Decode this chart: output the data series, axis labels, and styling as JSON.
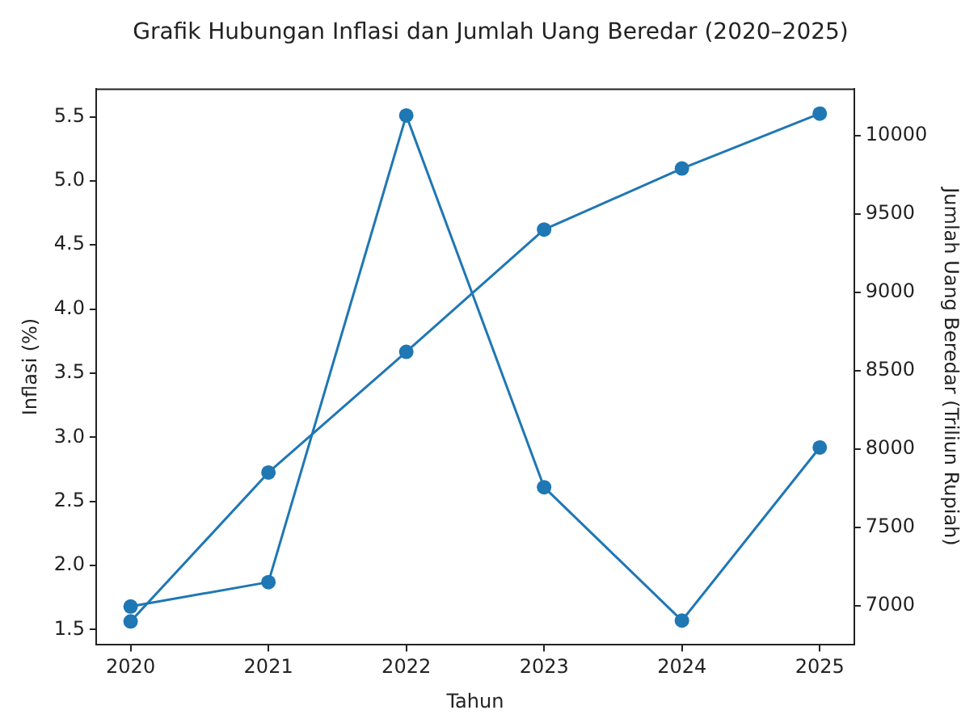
{
  "chart_data": {
    "type": "line",
    "title": "Grafik Hubungan Inflasi dan Jumlah Uang Beredar (2020–2025)",
    "xlabel": "Tahun",
    "ylabel": "Inflasi (%)",
    "y2label": "Jumlah Uang Beredar (Triliun Rupiah)",
    "x": [
      2020,
      2021,
      2022,
      2023,
      2024,
      2025
    ],
    "series": [
      {
        "color": "#1f77b4",
        "values": [
          1.68,
          1.87,
          5.51,
          2.61,
          1.57,
          2.92
        ]
      },
      {
        "color": "#1f77b4",
        "axis": "y2",
        "values": [
          6900,
          7850,
          8620,
          9400,
          9790,
          10140
        ]
      }
    ],
    "xlim": [
      2019.75,
      2025.25
    ],
    "xticks": [
      2020,
      2021,
      2022,
      2023,
      2024,
      2025
    ],
    "ylim": [
      1.38,
      5.72
    ],
    "yticks": [
      1.5,
      {
        "value": 2,
        "label": "2.0"
      },
      2.5,
      {
        "value": 3,
        "label": "3.0"
      },
      3.5,
      {
        "value": 4,
        "label": "4.0"
      },
      4.5,
      {
        "value": 5,
        "label": "5.0"
      },
      5.5
    ],
    "y2lim": [
      6750,
      10300
    ],
    "y2ticks": [
      7000,
      7500,
      8000,
      8500,
      9000,
      9500,
      10000
    ],
    "grid": false,
    "legend": false,
    "marker": "circle",
    "line_style": "solid"
  }
}
